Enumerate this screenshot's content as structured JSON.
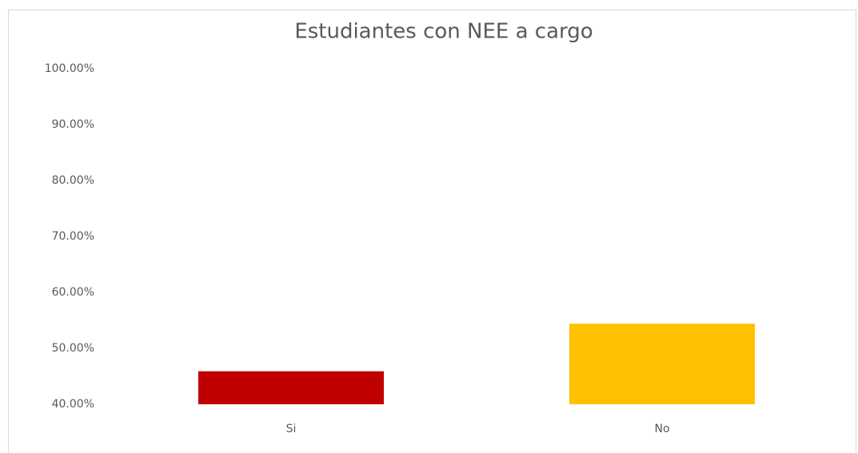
{
  "chart_data": {
    "type": "bar",
    "title": "Estudiantes con NEE a cargo",
    "categories": [
      "Si",
      "No"
    ],
    "values": [
      45.9,
      54.4
    ],
    "colors": [
      "#c00000",
      "#ffc000"
    ],
    "ylim": [
      40,
      100
    ],
    "yticks": [
      {
        "value": 40,
        "label": "40.00%"
      },
      {
        "value": 50,
        "label": "50.00%"
      },
      {
        "value": 60,
        "label": "60.00%"
      },
      {
        "value": 70,
        "label": "70.00%"
      },
      {
        "value": 80,
        "label": "80.00%"
      },
      {
        "value": 90,
        "label": "90.00%"
      },
      {
        "value": 100,
        "label": "100.00%"
      }
    ],
    "grid": false
  }
}
